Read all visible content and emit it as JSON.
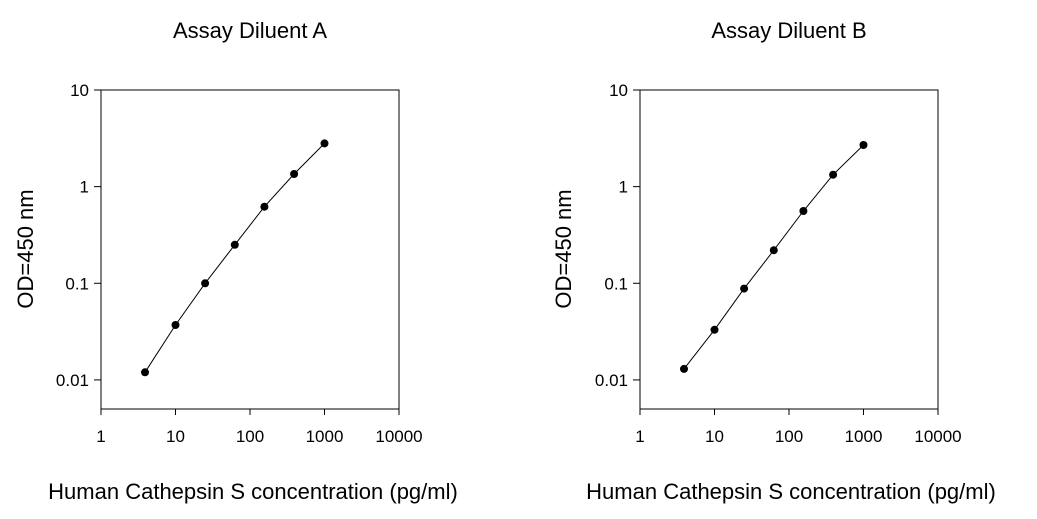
{
  "chart_data": [
    {
      "type": "line",
      "title": "Assay Diluent A",
      "xlabel": "Human Cathepsin S concentration (pg/ml)",
      "ylabel": "OD=450 nm",
      "xscale": "log",
      "yscale": "log",
      "xlim": [
        1,
        10000
      ],
      "ylim": [
        0.005,
        10
      ],
      "x_ticks": [
        1,
        10,
        100,
        1000,
        10000
      ],
      "x_tick_labels": [
        "1",
        "10",
        "100",
        "1000",
        "10000"
      ],
      "y_ticks": [
        0.01,
        0.1,
        1,
        10
      ],
      "y_tick_labels": [
        "0.01",
        "0.1",
        "1",
        "10"
      ],
      "grid": false,
      "legend": "none",
      "series": [
        {
          "x": [
            3.9,
            10,
            25,
            62.5,
            156,
            391,
            1000
          ],
          "y": [
            0.012,
            0.037,
            0.1,
            0.25,
            0.62,
            1.35,
            2.8
          ]
        }
      ]
    },
    {
      "type": "line",
      "title": "Assay Diluent B",
      "xlabel": "Human Cathepsin S concentration (pg/ml)",
      "ylabel": "OD=450 nm",
      "xscale": "log",
      "yscale": "log",
      "xlim": [
        1,
        10000
      ],
      "ylim": [
        0.005,
        10
      ],
      "x_ticks": [
        1,
        10,
        100,
        1000,
        10000
      ],
      "x_tick_labels": [
        "1",
        "10",
        "100",
        "1000",
        "10000"
      ],
      "y_ticks": [
        0.01,
        0.1,
        1,
        10
      ],
      "y_tick_labels": [
        "0.01",
        "0.1",
        "1",
        "10"
      ],
      "grid": false,
      "legend": "none",
      "series": [
        {
          "x": [
            3.9,
            10,
            25,
            62.5,
            156,
            391,
            1000
          ],
          "y": [
            0.013,
            0.033,
            0.088,
            0.22,
            0.56,
            1.33,
            2.7
          ]
        }
      ]
    }
  ]
}
